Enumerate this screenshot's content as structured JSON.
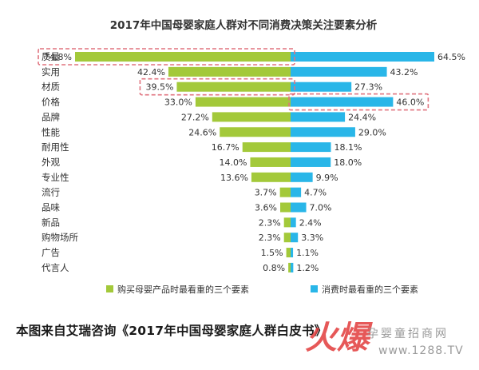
{
  "caption": "本图来自艾瑞咨询《2017年中国母婴家庭人群白皮书》",
  "watermark": {
    "brand": "火爆",
    "subtitle": "孕婴童招商网",
    "url": "www.1288.TV"
  },
  "chart_data": {
    "type": "bar",
    "orientation": "horizontal-diverging",
    "title": "2017年中国母婴家庭人群对不同消费决策关注要素分析",
    "categories": [
      "质量",
      "实用",
      "材质",
      "价格",
      "品牌",
      "性能",
      "耐用性",
      "外观",
      "专业性",
      "流行",
      "品味",
      "新品",
      "购物场所",
      "广告",
      "代言人"
    ],
    "unit": "%",
    "series": [
      {
        "name": "购买母婴产品时最看重的三个要素",
        "color": "#a3c93a",
        "side": "left",
        "values": [
          74.8,
          42.4,
          39.5,
          33.0,
          27.2,
          24.6,
          16.7,
          14.0,
          13.6,
          3.7,
          3.6,
          2.3,
          2.3,
          1.5,
          0.8
        ],
        "labels": [
          "74.8%",
          "42.4%",
          "39.5%",
          "33.0%",
          "27.2%",
          "24.6%",
          "16.7%",
          "14.0%",
          "13.6%",
          "3.7%",
          "3.6%",
          "2.3%",
          "2.3%",
          "1.5%",
          "0.8%"
        ]
      },
      {
        "name": "消费时最看重的三个要素",
        "color": "#29b6e8",
        "side": "right",
        "values": [
          64.5,
          43.2,
          27.3,
          46.0,
          24.4,
          29.0,
          18.1,
          18.0,
          9.9,
          4.7,
          7.0,
          2.4,
          3.3,
          1.1,
          1.2
        ],
        "labels": [
          "64.5%",
          "43.2%",
          "27.3%",
          "46.0%",
          "24.4%",
          "29.0%",
          "18.1%",
          "18.0%",
          "9.9%",
          "4.7%",
          "7.0%",
          "2.4%",
          "3.3%",
          "1.1%",
          "1.2%"
        ]
      }
    ],
    "highlights": [
      {
        "category": "质量",
        "side": "left"
      },
      {
        "category": "材质",
        "side": "left"
      },
      {
        "category": "价格",
        "side": "right"
      }
    ],
    "highlight_color": "#e0737f",
    "legend_placement": "bottom",
    "grid": false
  }
}
